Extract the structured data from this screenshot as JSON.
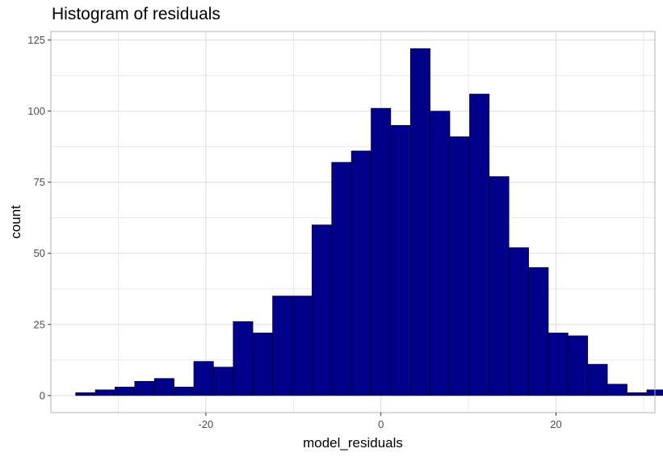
{
  "chart_data": {
    "type": "bar",
    "title": "Histogram of residuals",
    "xlabel": "model_residuals",
    "ylabel": "count",
    "bin_width": 2.25,
    "bins": [
      {
        "x": -33.75,
        "count": 1
      },
      {
        "x": -31.5,
        "count": 2
      },
      {
        "x": -29.25,
        "count": 3
      },
      {
        "x": -27.0,
        "count": 5
      },
      {
        "x": -24.75,
        "count": 6
      },
      {
        "x": -22.5,
        "count": 3
      },
      {
        "x": -20.25,
        "count": 12
      },
      {
        "x": -18.0,
        "count": 10
      },
      {
        "x": -15.75,
        "count": 26
      },
      {
        "x": -13.5,
        "count": 22
      },
      {
        "x": -11.25,
        "count": 35
      },
      {
        "x": -9.0,
        "count": 35
      },
      {
        "x": -6.75,
        "count": 60
      },
      {
        "x": -4.5,
        "count": 82
      },
      {
        "x": -2.25,
        "count": 86
      },
      {
        "x": 0.0,
        "count": 101
      },
      {
        "x": 2.25,
        "count": 95
      },
      {
        "x": 4.5,
        "count": 122
      },
      {
        "x": 6.75,
        "count": 100
      },
      {
        "x": 9.0,
        "count": 91
      },
      {
        "x": 11.25,
        "count": 106
      },
      {
        "x": 13.5,
        "count": 77
      },
      {
        "x": 15.75,
        "count": 52
      },
      {
        "x": 18.0,
        "count": 45
      },
      {
        "x": 20.25,
        "count": 22
      },
      {
        "x": 22.5,
        "count": 21
      },
      {
        "x": 24.75,
        "count": 11
      },
      {
        "x": 27.0,
        "count": 4
      },
      {
        "x": 29.25,
        "count": 1
      },
      {
        "x": 31.5,
        "count": 2
      }
    ],
    "xticks": [
      -20,
      0,
      20
    ],
    "yticks": [
      0,
      25,
      50,
      75,
      100,
      125
    ],
    "xlim": [
      -37.7,
      31.3
    ],
    "ylim": [
      -6,
      128
    ],
    "grid": true,
    "bar_fill": "#00008B",
    "bar_outline": "#000000",
    "grid_color": "#dedede",
    "panel_border": "#b3b3b3"
  }
}
